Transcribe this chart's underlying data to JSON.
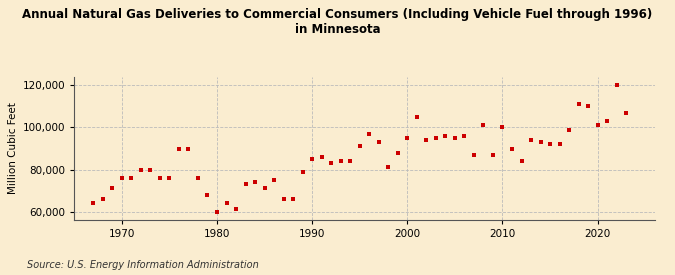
{
  "title": "Annual Natural Gas Deliveries to Commercial Consumers (Including Vehicle Fuel through 1996)\nin Minnesota",
  "ylabel": "Million Cubic Feet",
  "source": "Source: U.S. Energy Information Administration",
  "background_color": "#faedd0",
  "plot_background_color": "#faedd0",
  "marker_color": "#cc0000",
  "grid_color": "#bbbbbb",
  "years": [
    1967,
    1968,
    1969,
    1970,
    1971,
    1972,
    1973,
    1974,
    1975,
    1976,
    1977,
    1978,
    1979,
    1980,
    1981,
    1982,
    1983,
    1984,
    1985,
    1986,
    1987,
    1988,
    1989,
    1990,
    1991,
    1992,
    1993,
    1994,
    1995,
    1996,
    1997,
    1998,
    1999,
    2000,
    2001,
    2002,
    2003,
    2004,
    2005,
    2006,
    2007,
    2008,
    2009,
    2010,
    2011,
    2012,
    2013,
    2014,
    2015,
    2016,
    2017,
    2018,
    2019,
    2020,
    2021,
    2022,
    2023
  ],
  "values": [
    64000,
    66000,
    71000,
    76000,
    76000,
    80000,
    80000,
    76000,
    76000,
    90000,
    90000,
    76000,
    68000,
    60000,
    64000,
    61000,
    73000,
    74000,
    71000,
    75000,
    66000,
    66000,
    79000,
    85000,
    86000,
    83000,
    84000,
    84000,
    91000,
    97000,
    93000,
    81000,
    88000,
    95000,
    105000,
    94000,
    95000,
    96000,
    95000,
    96000,
    87000,
    101000,
    87000,
    100000,
    90000,
    84000,
    94000,
    93000,
    92000,
    92000,
    99000,
    111000,
    110000,
    101000,
    103000,
    120000,
    107000
  ],
  "ylim": [
    56000,
    124000
  ],
  "yticks": [
    60000,
    80000,
    100000,
    120000
  ],
  "xticks": [
    1970,
    1980,
    1990,
    2000,
    2010,
    2020
  ],
  "xlim": [
    1965,
    2026
  ]
}
